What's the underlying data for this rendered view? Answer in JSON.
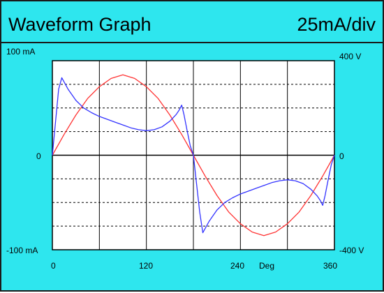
{
  "header": {
    "title": "Waveform Graph",
    "scale": "25mA/div"
  },
  "axes": {
    "left_top": "100 mA",
    "left_mid": "0",
    "left_bottom": "-100 mA",
    "right_top": "400 V",
    "right_mid": "0",
    "right_bottom": "-400 V",
    "x_ticks": [
      "0",
      "120",
      "240",
      "360"
    ],
    "x_unit": "Deg"
  },
  "colors": {
    "background": "#2ee6ee",
    "plot_background": "#ffffff",
    "current": "#3333ff",
    "voltage": "#ff3333",
    "grid": "#000000"
  },
  "chart_data": {
    "type": "line",
    "xlim": [
      0,
      360
    ],
    "ylim_left": [
      -100,
      100
    ],
    "ylim_right": [
      -400,
      400
    ],
    "series": [
      {
        "axis": "right",
        "color": "#ff3333",
        "points": [
          [
            0,
            0
          ],
          [
            15,
            88
          ],
          [
            30,
            170
          ],
          [
            45,
            240
          ],
          [
            60,
            290
          ],
          [
            75,
            325
          ],
          [
            90,
            340
          ],
          [
            105,
            325
          ],
          [
            120,
            290
          ],
          [
            135,
            240
          ],
          [
            150,
            170
          ],
          [
            165,
            88
          ],
          [
            180,
            0
          ],
          [
            195,
            -88
          ],
          [
            210,
            -170
          ],
          [
            225,
            -240
          ],
          [
            240,
            -290
          ],
          [
            255,
            -325
          ],
          [
            270,
            -340
          ],
          [
            285,
            -325
          ],
          [
            300,
            -290
          ],
          [
            315,
            -240
          ],
          [
            330,
            -170
          ],
          [
            345,
            -88
          ],
          [
            360,
            0
          ]
        ]
      },
      {
        "axis": "left",
        "color": "#3333ff",
        "points": [
          [
            0,
            0
          ],
          [
            8,
            70
          ],
          [
            12,
            82
          ],
          [
            20,
            70
          ],
          [
            30,
            58
          ],
          [
            40,
            50
          ],
          [
            50,
            45
          ],
          [
            60,
            41
          ],
          [
            70,
            38
          ],
          [
            80,
            35
          ],
          [
            90,
            32
          ],
          [
            100,
            29
          ],
          [
            110,
            27
          ],
          [
            120,
            26
          ],
          [
            130,
            27
          ],
          [
            140,
            30
          ],
          [
            150,
            36
          ],
          [
            158,
            43
          ],
          [
            162,
            48
          ],
          [
            165,
            53
          ],
          [
            168,
            43
          ],
          [
            172,
            26
          ],
          [
            176,
            10
          ],
          [
            180,
            0
          ],
          [
            188,
            -60
          ],
          [
            192,
            -82
          ],
          [
            200,
            -70
          ],
          [
            210,
            -58
          ],
          [
            220,
            -50
          ],
          [
            230,
            -45
          ],
          [
            240,
            -41
          ],
          [
            250,
            -38
          ],
          [
            260,
            -35
          ],
          [
            270,
            -32
          ],
          [
            280,
            -29
          ],
          [
            290,
            -27
          ],
          [
            300,
            -26
          ],
          [
            310,
            -27
          ],
          [
            320,
            -30
          ],
          [
            330,
            -36
          ],
          [
            338,
            -43
          ],
          [
            342,
            -48
          ],
          [
            345,
            -53
          ],
          [
            348,
            -43
          ],
          [
            352,
            -26
          ],
          [
            356,
            -10
          ],
          [
            360,
            0
          ]
        ]
      }
    ]
  }
}
